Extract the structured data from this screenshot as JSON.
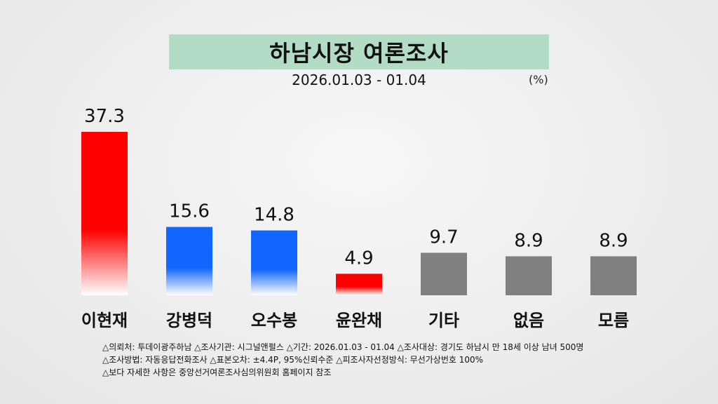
{
  "chart_data": {
    "type": "bar",
    "title": "하남시장 여론조사",
    "subtitle": "2026.01.03 - 01.04",
    "unit": "(%)",
    "categories": [
      "이현재",
      "강병덕",
      "오수봉",
      "윤완채",
      "기타",
      "없음",
      "모름"
    ],
    "values": [
      37.3,
      15.6,
      14.8,
      4.9,
      9.7,
      8.9,
      8.9
    ],
    "value_labels": [
      "37.3",
      "15.6",
      "14.8",
      "4.9",
      "9.7",
      "8.9",
      "8.9"
    ],
    "bar_colors": [
      "#ff0000",
      "#1166ff",
      "#1166ff",
      "#ff0000",
      "#808080",
      "#808080",
      "#808080"
    ],
    "ylim": [
      0,
      37.3
    ],
    "grid": false,
    "legend": "none"
  },
  "notes": [
    "△의뢰처: 투데이광주하남 △조사기관: 시그널앤펄스 △기간: 2026.01.03 - 01.04  △조사대상: 경기도 하남시 만 18세 이상 남녀 500명",
    "△조사방법: 자동응답전화조사    △표본오차: ±4.4P, 95%신뢰수준  △피조사자선정방식: 무선가상번호 100%",
    "△보다 자세한 사항은 중앙선거여론조사심의위원회 홈페이지 참조"
  ]
}
